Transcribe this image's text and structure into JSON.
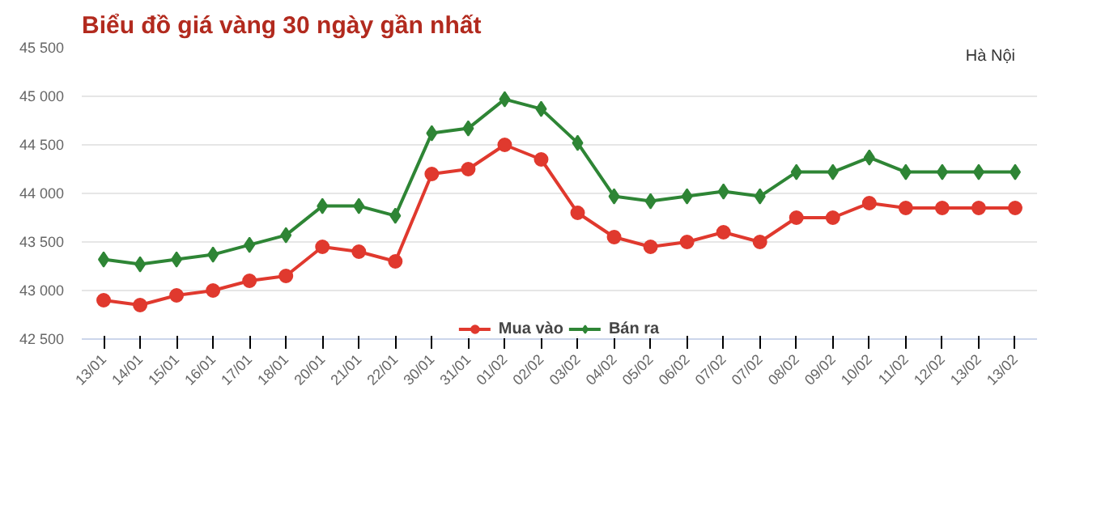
{
  "chart_data": {
    "type": "line",
    "title": "Biểu đồ giá vàng 30 ngày gần nhất",
    "annotations": [
      "Hà Nội"
    ],
    "categories": [
      "13/01",
      "14/01",
      "15/01",
      "16/01",
      "17/01",
      "18/01",
      "20/01",
      "21/01",
      "22/01",
      "30/01",
      "31/01",
      "01/02",
      "02/02",
      "03/02",
      "04/02",
      "05/02",
      "06/02",
      "07/02",
      "07/02",
      "08/02",
      "09/02",
      "10/02",
      "11/02",
      "12/02",
      "13/02",
      "13/02"
    ],
    "series": [
      {
        "name": "Mua vào",
        "color": "#e0392e",
        "marker": "circle",
        "values": [
          42900,
          42850,
          42950,
          43000,
          43100,
          43150,
          43450,
          43400,
          43300,
          44200,
          44250,
          44500,
          44350,
          43800,
          43550,
          43450,
          43500,
          43600,
          43500,
          43750,
          43750,
          43900,
          43850,
          43850,
          43850,
          43850
        ]
      },
      {
        "name": "Bán ra",
        "color": "#2e8535",
        "marker": "diamond",
        "values": [
          43320,
          43270,
          43320,
          43370,
          43470,
          43570,
          43870,
          43870,
          43770,
          44620,
          44670,
          44970,
          44870,
          44520,
          43970,
          43920,
          43970,
          44020,
          43970,
          44220,
          44220,
          44370,
          44220,
          44220,
          44220,
          44220
        ]
      }
    ],
    "ylim": [
      42500,
      45500
    ],
    "yticks": [
      {
        "value": 42500,
        "label": "42 500"
      },
      {
        "value": 43000,
        "label": "43 000"
      },
      {
        "value": 43500,
        "label": "43 500"
      },
      {
        "value": 44000,
        "label": "44 000"
      },
      {
        "value": 44500,
        "label": "44 500"
      },
      {
        "value": 45000,
        "label": "45 000"
      },
      {
        "value": 45500,
        "label": "45 500"
      }
    ],
    "grid": "y",
    "legend": "bottom",
    "line_style": "solid"
  }
}
